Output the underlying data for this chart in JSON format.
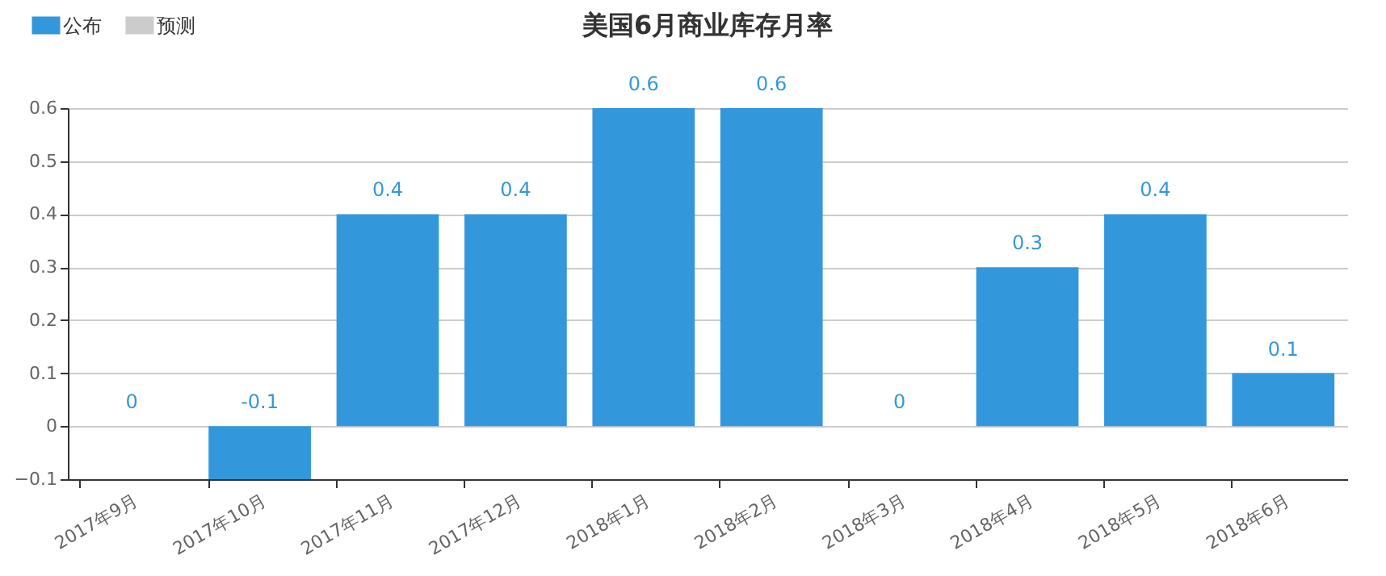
{
  "chart_data": {
    "type": "bar",
    "title": "美国6月商业库存月率",
    "categories": [
      "2017年9月",
      "2017年10月",
      "2017年11月",
      "2017年12月",
      "2018年1月",
      "2018年2月",
      "2018年3月",
      "2018年4月",
      "2018年5月",
      "2018年6月"
    ],
    "series": [
      {
        "name": "公布",
        "color": "#3398db",
        "values": [
          0,
          -0.1,
          0.4,
          0.4,
          0.6,
          0.6,
          0,
          0.3,
          0.4,
          0.1
        ]
      },
      {
        "name": "预测",
        "color": "#cccccc",
        "values": [
          null,
          null,
          null,
          null,
          null,
          null,
          null,
          null,
          null,
          null
        ]
      }
    ],
    "ylim": [
      -0.1,
      0.6
    ],
    "yticks": [
      -0.1,
      0,
      0.1,
      0.2,
      0.3,
      0.4,
      0.5,
      0.6
    ],
    "grid": "y",
    "legend": "top left",
    "data_labels": true
  }
}
